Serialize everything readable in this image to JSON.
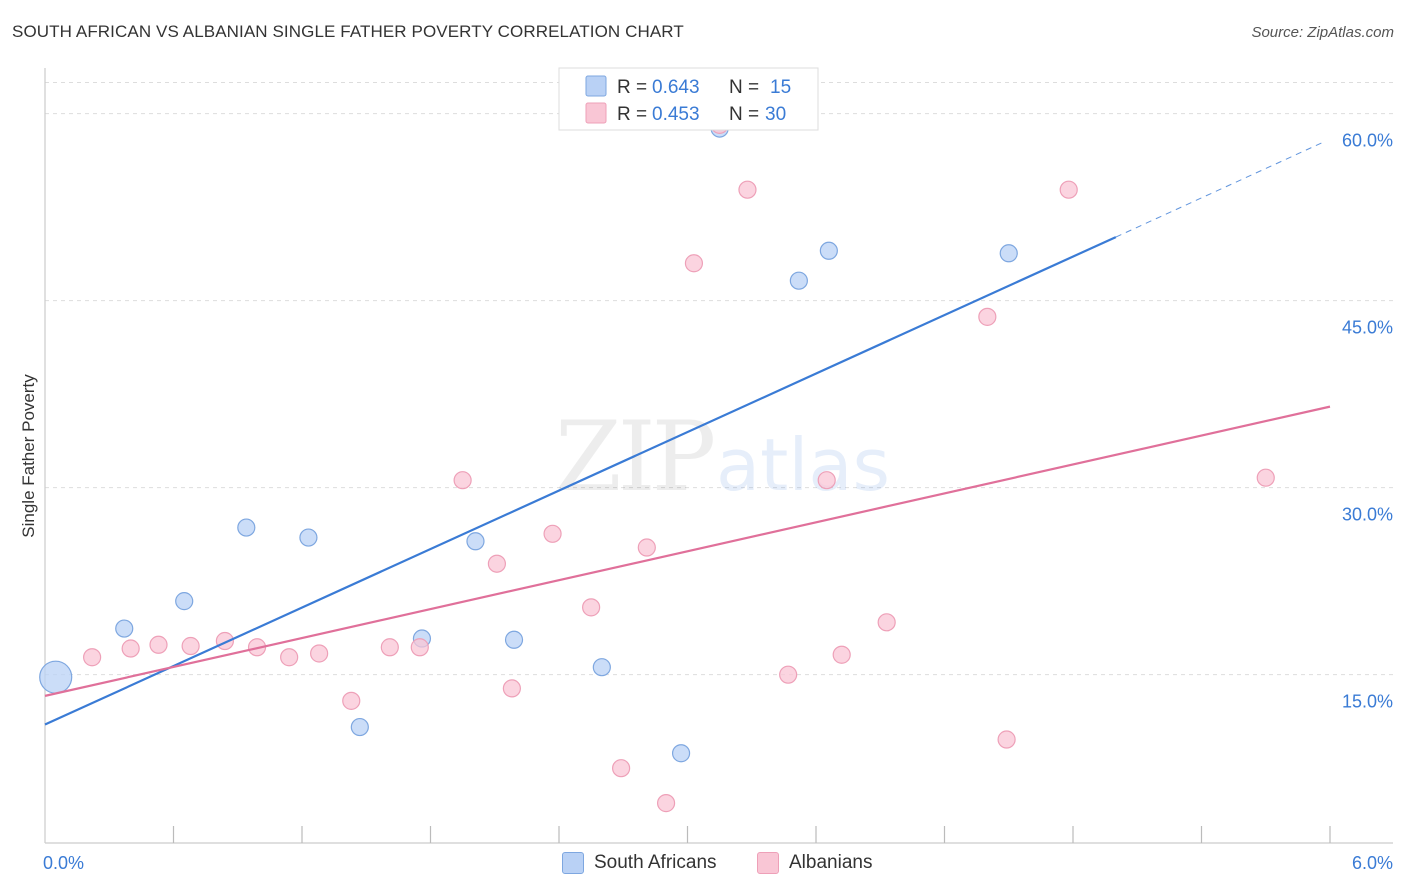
{
  "title": "SOUTH AFRICAN VS ALBANIAN SINGLE FATHER POVERTY CORRELATION CHART",
  "source": "Source: ZipAtlas.com",
  "watermark": {
    "zip": "ZIP",
    "atlas": "atlas"
  },
  "chart_data": {
    "type": "scatter",
    "ylabel": "Single Father Poverty",
    "xlabel": "",
    "xlim": [
      0,
      6
    ],
    "ylim": [
      1.5,
      63.5
    ],
    "x_tick_labels": [
      {
        "value": 0,
        "label": "0.0%"
      },
      {
        "value": 6,
        "label": "6.0%"
      }
    ],
    "x_minor_ticks": [
      0.6,
      1.2,
      1.8,
      2.4,
      3.0,
      3.6,
      4.2,
      4.8,
      5.4,
      6.0
    ],
    "y_ticks": [
      {
        "value": 15,
        "label": "15.0%"
      },
      {
        "value": 30,
        "label": "30.0%"
      },
      {
        "value": 45,
        "label": "45.0%"
      },
      {
        "value": 60,
        "label": "60.0%"
      }
    ],
    "grid_top_value": 62.5,
    "series": [
      {
        "name": "South Africans",
        "color": "#3a7bd5",
        "fill": "#b9d1f5",
        "stroke": "#7ea7e0",
        "R": "0.643",
        "N": "15",
        "points": [
          {
            "x": 0.05,
            "y": 14.8,
            "big": true
          },
          {
            "x": 0.37,
            "y": 18.7
          },
          {
            "x": 0.65,
            "y": 20.9
          },
          {
            "x": 0.94,
            "y": 26.8
          },
          {
            "x": 1.23,
            "y": 26.0
          },
          {
            "x": 1.47,
            "y": 10.8
          },
          {
            "x": 1.76,
            "y": 17.9
          },
          {
            "x": 2.01,
            "y": 25.7
          },
          {
            "x": 2.19,
            "y": 17.8
          },
          {
            "x": 2.6,
            "y": 15.6
          },
          {
            "x": 2.97,
            "y": 8.7
          },
          {
            "x": 3.15,
            "y": 58.8
          },
          {
            "x": 3.52,
            "y": 46.6
          },
          {
            "x": 3.66,
            "y": 49.0
          },
          {
            "x": 4.5,
            "y": 48.8
          }
        ],
        "trend": {
          "x0": 0.0,
          "y0": 11.0,
          "x1": 5.0,
          "y1": 50.1,
          "dash_x1": 5.98,
          "dash_y1": 57.8
        }
      },
      {
        "name": "Albanians",
        "color": "#e0709a",
        "fill": "#f9c6d5",
        "stroke": "#eea0b8",
        "R": "0.453",
        "N": "30",
        "points": [
          {
            "x": 0.22,
            "y": 16.4
          },
          {
            "x": 0.4,
            "y": 17.1
          },
          {
            "x": 0.53,
            "y": 17.4
          },
          {
            "x": 0.68,
            "y": 17.3
          },
          {
            "x": 0.84,
            "y": 17.7
          },
          {
            "x": 0.99,
            "y": 17.2
          },
          {
            "x": 1.14,
            "y": 16.4
          },
          {
            "x": 1.28,
            "y": 16.7
          },
          {
            "x": 1.43,
            "y": 12.9
          },
          {
            "x": 1.61,
            "y": 17.2
          },
          {
            "x": 1.75,
            "y": 17.2
          },
          {
            "x": 1.95,
            "y": 30.6
          },
          {
            "x": 2.11,
            "y": 23.9
          },
          {
            "x": 2.18,
            "y": 13.9
          },
          {
            "x": 2.37,
            "y": 26.3
          },
          {
            "x": 2.55,
            "y": 20.4
          },
          {
            "x": 2.69,
            "y": 7.5
          },
          {
            "x": 2.81,
            "y": 25.2
          },
          {
            "x": 2.9,
            "y": 4.7
          },
          {
            "x": 3.03,
            "y": 48.0
          },
          {
            "x": 3.15,
            "y": 59.1
          },
          {
            "x": 3.28,
            "y": 53.9
          },
          {
            "x": 3.47,
            "y": 15.0
          },
          {
            "x": 3.65,
            "y": 30.6
          },
          {
            "x": 3.72,
            "y": 16.6
          },
          {
            "x": 3.93,
            "y": 19.2
          },
          {
            "x": 4.4,
            "y": 43.7
          },
          {
            "x": 4.49,
            "y": 9.8
          },
          {
            "x": 4.78,
            "y": 53.9
          },
          {
            "x": 5.7,
            "y": 30.8
          }
        ],
        "trend": {
          "x0": 0.0,
          "y0": 13.3,
          "x1": 6.0,
          "y1": 36.5
        }
      }
    ]
  }
}
